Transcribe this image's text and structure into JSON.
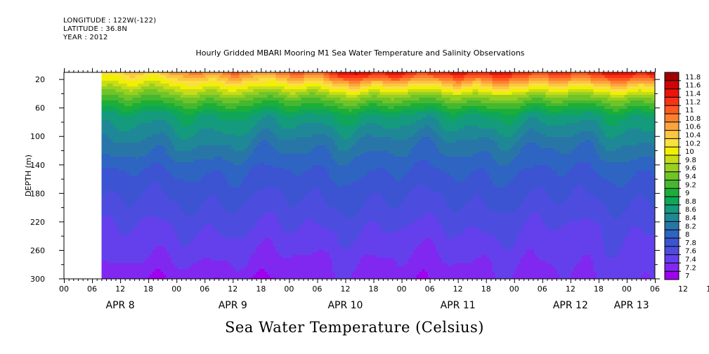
{
  "header": {
    "longitude": "LONGITUDE : 122W(-122)",
    "latitude": "LATITUDE : 36.8N",
    "year": "YEAR : 2012"
  },
  "footer_title": "Sea Water Temperature (Celsius)",
  "colors": {
    "palette": [
      "#a000f0",
      "#8028f0",
      "#6440ec",
      "#4c4cde",
      "#3c54d2",
      "#2e64c2",
      "#2876a8",
      "#1e8896",
      "#149a7c",
      "#10a65a",
      "#1cae38",
      "#46b830",
      "#70c428",
      "#98d020",
      "#c8dc18",
      "#f0f000",
      "#fae040",
      "#fcc640",
      "#fca43c",
      "#fc8030",
      "#fc5a20",
      "#f83414",
      "#ec1408",
      "#d00404",
      "#a00000"
    ]
  },
  "chart_data": {
    "type": "heatmap",
    "title": "Hourly Gridded MBARI Mooring M1 Sea Water Temperature and Salinity Observations",
    "xlabel": "",
    "ylabel": "DEPTH (m)",
    "ylim": [
      300,
      10
    ],
    "y_ticks": [
      20,
      60,
      100,
      140,
      180,
      220,
      260,
      300
    ],
    "x_range_hours": [
      0,
      126
    ],
    "x_tick_labels": [
      "00",
      "06",
      "12",
      "18",
      "00",
      "06",
      "12",
      "18",
      "00",
      "06",
      "12",
      "18",
      "00",
      "06",
      "12",
      "18",
      "00",
      "06",
      "12",
      "18",
      "00",
      "06",
      "12",
      "18",
      "00",
      "06"
    ],
    "date_labels": [
      {
        "label": "APR  8",
        "hour": 12
      },
      {
        "label": "APR  9",
        "hour": 36
      },
      {
        "label": "APR 10",
        "hour": 60
      },
      {
        "label": "APR 11",
        "hour": 84
      },
      {
        "label": "APR 12",
        "hour": 108
      },
      {
        "label": "APR 13",
        "hour": 121
      }
    ],
    "data_start_hour": 8,
    "colorbar": {
      "levels": [
        "7",
        "7.2",
        "7.4",
        "7.6",
        "7.8",
        "8",
        "8.2",
        "8.4",
        "8.6",
        "8.8",
        "9",
        "9.2",
        "9.4",
        "9.6",
        "9.8",
        "10",
        "10.2",
        "10.4",
        "10.6",
        "10.8",
        "11",
        "11.2",
        "11.4",
        "11.6",
        "11.8"
      ],
      "min": 7.0,
      "max": 11.8
    },
    "series": [
      {
        "hour": 8,
        "depth": [
          10,
          25,
          45,
          70,
          110,
          150,
          190,
          230,
          270,
          300
        ],
        "temp": [
          10.4,
          10.0,
          9.4,
          8.8,
          8.4,
          8.0,
          7.8,
          7.6,
          7.5,
          7.3
        ]
      },
      {
        "hour": 30,
        "depth": [
          10,
          25,
          45,
          70,
          110,
          150,
          190,
          230,
          270,
          300
        ],
        "temp": [
          10.8,
          10.2,
          9.5,
          8.8,
          8.4,
          8.0,
          7.8,
          7.6,
          7.4,
          7.2
        ]
      },
      {
        "hour": 56,
        "depth": [
          10,
          25,
          45,
          70,
          110,
          150,
          190,
          230,
          270,
          300
        ],
        "temp": [
          11.2,
          10.4,
          9.5,
          8.8,
          8.3,
          8.0,
          7.8,
          7.6,
          7.4,
          7.3
        ]
      },
      {
        "hour": 62,
        "depth": [
          10,
          25,
          45,
          70,
          110,
          150,
          190,
          230,
          270,
          300
        ],
        "temp": [
          11.6,
          10.6,
          9.6,
          8.8,
          8.3,
          8.0,
          7.8,
          7.6,
          7.4,
          7.3
        ]
      },
      {
        "hour": 90,
        "depth": [
          10,
          25,
          45,
          70,
          110,
          150,
          190,
          230,
          270,
          300
        ],
        "temp": [
          11.4,
          10.6,
          9.6,
          8.8,
          8.3,
          8.0,
          7.8,
          7.6,
          7.4,
          7.3
        ]
      },
      {
        "hour": 110,
        "depth": [
          10,
          25,
          45,
          70,
          110,
          150,
          190,
          230,
          270,
          300
        ],
        "temp": [
          11.4,
          10.6,
          9.6,
          8.8,
          8.3,
          8.0,
          7.8,
          7.6,
          7.5,
          7.4
        ]
      },
      {
        "hour": 125,
        "depth": [
          10,
          25,
          45,
          70,
          110,
          150,
          190,
          230,
          270,
          300
        ],
        "temp": [
          11.6,
          10.6,
          9.6,
          8.8,
          8.4,
          8.0,
          7.8,
          7.6,
          7.5,
          7.4
        ]
      }
    ]
  }
}
